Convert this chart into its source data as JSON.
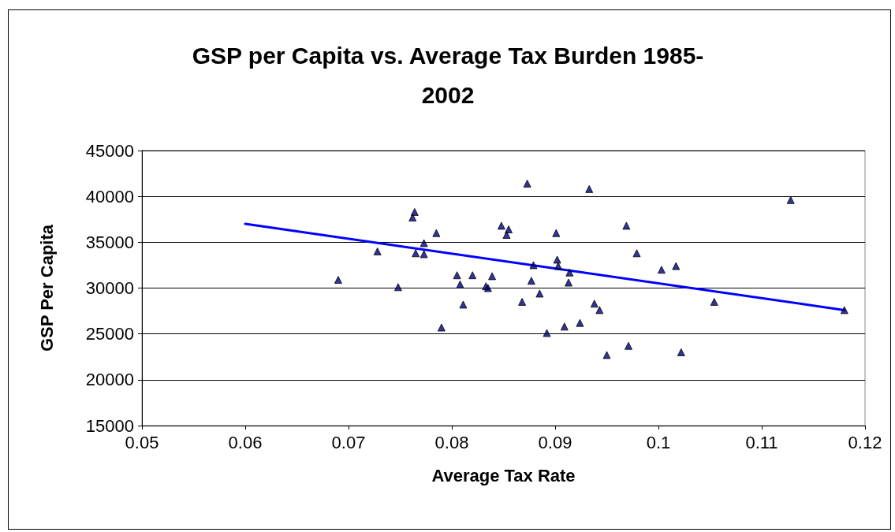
{
  "chart_data": {
    "type": "scatter",
    "title": "GSP per Capita vs. Average Tax Burden 1985-\n2002",
    "xlabel": "Average Tax Rate",
    "ylabel": "GSP Per Capita",
    "xlim": [
      0.05,
      0.12
    ],
    "xticks": [
      0.05,
      0.06,
      0.07,
      0.08,
      0.09,
      0.1,
      0.11,
      0.12
    ],
    "ylim": [
      15000,
      45000
    ],
    "yticks": [
      15000,
      20000,
      25000,
      30000,
      35000,
      40000,
      45000
    ],
    "grid": "y",
    "marker": "triangle",
    "series": [
      {
        "color": "#000080",
        "x": [
          0.069,
          0.0728,
          0.0748,
          0.0762,
          0.0764,
          0.0765,
          0.0773,
          0.0773,
          0.0785,
          0.079,
          0.0805,
          0.0808,
          0.0811,
          0.082,
          0.0833,
          0.0835,
          0.0839,
          0.0848,
          0.0853,
          0.0855,
          0.0868,
          0.0873,
          0.0877,
          0.0879,
          0.0885,
          0.0892,
          0.0901,
          0.0902,
          0.0903,
          0.0909,
          0.0913,
          0.0914,
          0.0924,
          0.0933,
          0.0938,
          0.0943,
          0.095,
          0.0969,
          0.0971,
          0.0979,
          0.1003,
          0.1017,
          0.1022,
          0.1054,
          0.1128,
          0.118
        ],
        "values": [
          30900,
          34000,
          30100,
          37700,
          38300,
          33800,
          34900,
          33700,
          36000,
          25700,
          31400,
          30400,
          28200,
          31400,
          30200,
          30000,
          31300,
          36800,
          35800,
          36400,
          28500,
          41400,
          30800,
          32500,
          29400,
          25100,
          36000,
          33100,
          32400,
          25800,
          30600,
          31700,
          26200,
          40800,
          28300,
          27600,
          22700,
          36800,
          23700,
          33800,
          32000,
          32400,
          23000,
          28500,
          39600,
          27600
        ]
      },
      {
        "type": "line",
        "color": "#0000ff",
        "marker": "none",
        "line_style": "solid",
        "x": [
          0.06,
          0.118
        ],
        "values": [
          37000,
          27600
        ]
      }
    ]
  }
}
